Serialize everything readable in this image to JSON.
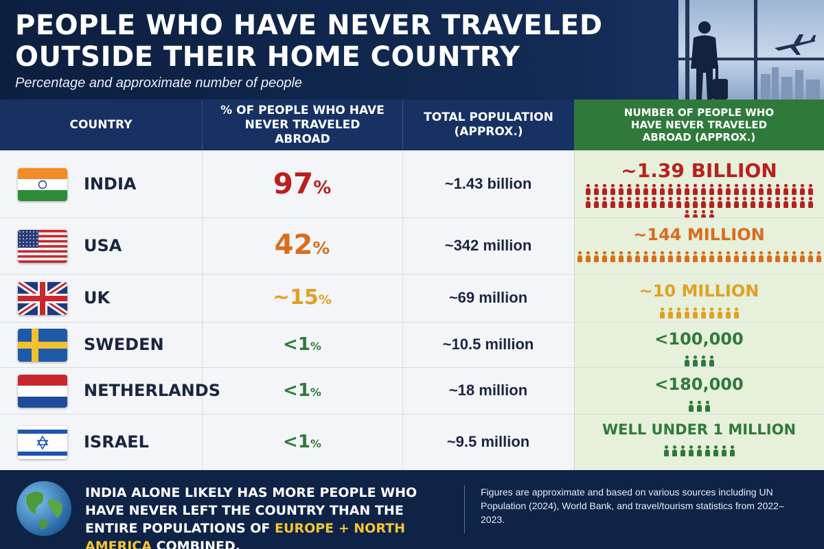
{
  "header": {
    "title": "PEOPLE WHO HAVE NEVER TRAVELED OUTSIDE THEIR HOME COUNTRY",
    "subtitle": "Percentage and approximate number of people"
  },
  "colors": {
    "navy": "#173163",
    "green_header": "#2f7a3b",
    "red": "#b8201e",
    "orange": "#d96d1c",
    "amber": "#e1a024",
    "green": "#2f7a3b",
    "highlight": "#f5c533"
  },
  "chart_data": {
    "type": "table",
    "columns": [
      "COUNTRY",
      "% OF PEOPLE WHO HAVE NEVER TRAVELED ABROAD",
      "TOTAL POPULATION (APPROX.)",
      "NUMBER OF PEOPLE WHO HAVE NEVER TRAVELED ABROAD (APPROX.)"
    ],
    "rows": [
      {
        "country": "INDIA",
        "flag": "india-flag",
        "pct": "97",
        "pct_prefix": "",
        "population": "~1.43 billion",
        "number": "~1.39 BILLION",
        "color": "#b8201e",
        "pictograms": 60
      },
      {
        "country": "USA",
        "flag": "usa-flag",
        "pct": "42",
        "pct_prefix": "",
        "population": "~342 million",
        "number": "~144 MILLION",
        "color": "#d96d1c",
        "pictograms": 30
      },
      {
        "country": "UK",
        "flag": "uk-flag",
        "pct": "15",
        "pct_prefix": "~",
        "population": "~69 million",
        "number": "~10 MILLION",
        "color": "#e1a024",
        "pictograms": 10
      },
      {
        "country": "SWEDEN",
        "flag": "sweden-flag",
        "pct": "1",
        "pct_prefix": "<",
        "population": "~10.5 million",
        "number": "<100,000",
        "color": "#2f7a3b",
        "pictograms": 4
      },
      {
        "country": "NETHERLANDS",
        "flag": "netherlands-flag",
        "pct": "1",
        "pct_prefix": "<",
        "population": "~18 million",
        "number": "<180,000",
        "color": "#2f7a3b",
        "pictograms": 3
      },
      {
        "country": "ISRAEL",
        "flag": "israel-flag",
        "pct": "1",
        "pct_prefix": "<",
        "population": "~9.5 million",
        "number": "WELL UNDER 1 MILLION",
        "color": "#2f7a3b",
        "pictograms": 9
      }
    ]
  },
  "footer": {
    "msg_part1": "INDIA ALONE LIKELY HAS MORE PEOPLE WHO HAVE NEVER LEFT THE COUNTRY THAN THE ENTIRE POPULATIONS OF ",
    "msg_highlight": "EUROPE + NORTH AMERICA",
    "msg_part2": " COMBINED.",
    "note": "Figures are approximate and based on various sources including UN Population (2024), World Bank, and travel/tourism statistics from 2022–2023."
  }
}
